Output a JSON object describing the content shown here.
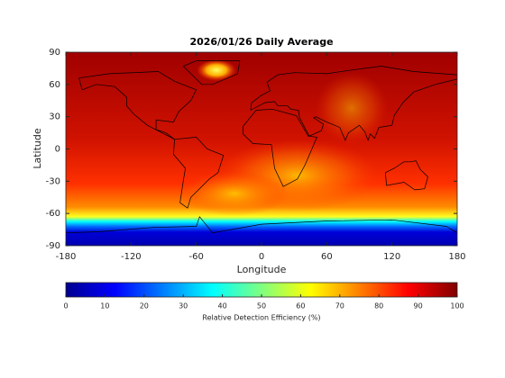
{
  "chart_data": {
    "type": "heatmap",
    "title": "2026/01/26 Daily Average",
    "xlabel": "Longitude",
    "ylabel": "Latitude",
    "xlim": [
      -180,
      180
    ],
    "ylim": [
      -90,
      90
    ],
    "xticks": [
      -180,
      -120,
      -60,
      0,
      60,
      120,
      180
    ],
    "yticks": [
      90,
      60,
      30,
      0,
      -30,
      -60,
      -90
    ],
    "colorbar": {
      "label": "Relative Detection Efficiency (%)",
      "lim": [
        0,
        100
      ],
      "ticks": [
        0,
        10,
        20,
        30,
        40,
        50,
        60,
        70,
        80,
        90,
        100
      ],
      "colormap": "jet"
    }
  }
}
